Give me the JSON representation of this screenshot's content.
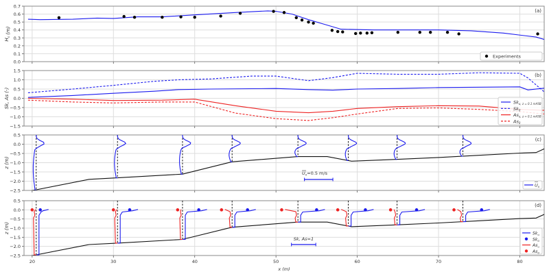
{
  "chart_data": [
    {
      "panel": "a",
      "type": "line",
      "panel_label": "(a)",
      "ylabel": "H_s (m)",
      "ylim": [
        0.0,
        0.7
      ],
      "yticks": [
        "0.0",
        "0.1",
        "0.2",
        "0.3",
        "0.4",
        "0.5",
        "0.6",
        "0.7"
      ],
      "grid": true,
      "legend": {
        "position": "lower right",
        "entries": [
          "Experiments"
        ]
      },
      "series": [
        {
          "name": "Model H_s",
          "style": "line",
          "color": "#0000ee",
          "x": [
            19.5,
            21,
            25,
            28,
            30,
            33,
            36,
            40,
            45,
            49,
            50,
            52,
            54,
            56,
            58,
            62,
            66,
            70,
            74,
            78,
            82,
            83
          ],
          "y": [
            0.535,
            0.53,
            0.535,
            0.55,
            0.545,
            0.565,
            0.565,
            0.59,
            0.62,
            0.64,
            0.635,
            0.6,
            0.53,
            0.47,
            0.41,
            0.4,
            0.4,
            0.4,
            0.39,
            0.36,
            0.31,
            0.28
          ]
        },
        {
          "name": "Experiments",
          "style": "scatter",
          "color": "#000000",
          "x": [
            23.3,
            31.3,
            32.6,
            36.0,
            38.3,
            40.0,
            43.2,
            45.6,
            49.7,
            51.0,
            52.5,
            53.2,
            54.0,
            54.6,
            56.9,
            57.6,
            58.2,
            59.8,
            60.4,
            61.2,
            61.8,
            65.0,
            67.7,
            69.0,
            71.1,
            72.5,
            82.2
          ],
          "y": [
            0.555,
            0.57,
            0.56,
            0.56,
            0.565,
            0.56,
            0.575,
            0.61,
            0.635,
            0.62,
            0.555,
            0.525,
            0.5,
            0.485,
            0.395,
            0.38,
            0.375,
            0.355,
            0.36,
            0.36,
            0.365,
            0.37,
            0.37,
            0.37,
            0.37,
            0.35,
            0.35
          ]
        }
      ]
    },
    {
      "panel": "b",
      "type": "line",
      "panel_label": "(b)",
      "ylabel": "Sk, As (-)",
      "ylim": [
        -1.5,
        1.5
      ],
      "yticks": [
        "-1.5",
        "-1.0",
        "-0.5",
        "0.0",
        "0.5",
        "1.0",
        "1.5"
      ],
      "grid": true,
      "legend": {
        "position": "lower right",
        "entries": [
          "Sk_u, z=0.1 mASB",
          "Sk_0",
          "As_u, z=0.1 mASB",
          "As_0"
        ]
      },
      "series": [
        {
          "name": "Sk_u, z=0.1 mASB",
          "color": "#0000ee",
          "dash": false,
          "x": [
            19.5,
            25,
            30,
            35,
            38,
            42,
            50,
            54,
            57,
            60,
            65,
            70,
            75,
            80,
            81,
            83
          ],
          "y": [
            0.05,
            0.15,
            0.27,
            0.38,
            0.47,
            0.5,
            0.53,
            0.47,
            0.44,
            0.5,
            0.53,
            0.58,
            0.6,
            0.62,
            0.45,
            0.55
          ]
        },
        {
          "name": "Sk_0",
          "color": "#0000ee",
          "dash": true,
          "x": [
            19.5,
            25,
            30,
            35,
            38,
            42,
            47,
            50,
            54,
            57,
            60,
            65,
            70,
            75,
            80,
            81,
            83
          ],
          "y": [
            0.3,
            0.5,
            0.7,
            0.92,
            1.0,
            1.05,
            1.2,
            1.2,
            0.95,
            1.12,
            1.35,
            1.3,
            1.3,
            1.38,
            1.35,
            1.1,
            0.35
          ]
        },
        {
          "name": "As_u, z=0.1 mASB",
          "color": "#ee0000",
          "dash": false,
          "x": [
            19.5,
            25,
            30,
            36,
            40,
            45,
            50,
            54,
            57,
            60,
            65,
            70,
            75,
            80,
            83
          ],
          "y": [
            0.0,
            -0.05,
            -0.12,
            -0.1,
            -0.05,
            -0.4,
            -0.7,
            -0.78,
            -0.7,
            -0.55,
            -0.45,
            -0.4,
            -0.42,
            -0.6,
            -0.65
          ]
        },
        {
          "name": "As_0",
          "color": "#ee0000",
          "dash": true,
          "x": [
            19.5,
            25,
            30,
            36,
            40,
            45,
            50,
            54,
            57,
            60,
            65,
            70,
            75,
            80,
            83
          ],
          "y": [
            -0.1,
            -0.2,
            -0.25,
            -0.2,
            -0.2,
            -0.8,
            -1.1,
            -1.2,
            -1.05,
            -0.85,
            -0.55,
            -0.52,
            -0.6,
            -0.72,
            -0.85
          ]
        }
      ]
    },
    {
      "panel": "c",
      "type": "line",
      "panel_label": "(c)",
      "ylabel": "z (m)",
      "ylim": [
        -2.5,
        0.5
      ],
      "yticks": [
        "-2.5",
        "-2.0",
        "-1.5",
        "-1.0",
        "-0.5",
        "0.0",
        "0.5"
      ],
      "grid": true,
      "legend": {
        "position": "lower right",
        "entries": [
          "U_x (mean)"
        ]
      },
      "scale_annotation": "U_x=0.5 m/s",
      "bed_profile": {
        "x": [
          19.5,
          20.3,
          27,
          30.5,
          38.5,
          44.6,
          52.7,
          56.3,
          59.3,
          65,
          70,
          75,
          80,
          82,
          83
        ],
        "z": [
          -2.55,
          -2.48,
          -1.9,
          -1.82,
          -1.62,
          -0.95,
          -0.67,
          -0.67,
          -0.92,
          -0.82,
          -0.72,
          -0.6,
          -0.48,
          -0.45,
          -0.25
        ]
      },
      "profile_stations_x": [
        20.5,
        30.5,
        38.5,
        44.6,
        52.7,
        58.9,
        64.9,
        73.0
      ],
      "series": [
        {
          "name": "U_x",
          "color": "#0000ee"
        }
      ]
    },
    {
      "panel": "d",
      "type": "line",
      "panel_label": "(d)",
      "xlabel": "x (m)",
      "ylabel": "z (m)",
      "ylim": [
        -2.5,
        0.5
      ],
      "xlim": [
        19,
        83
      ],
      "xticks": [
        "20",
        "30",
        "40",
        "50",
        "60",
        "70",
        "80"
      ],
      "yticks": [
        "-2.5",
        "-2.0",
        "-1.5",
        "-1.0",
        "-0.5",
        "0.0",
        "0.5"
      ],
      "grid": true,
      "legend": {
        "position": "lower right",
        "entries": [
          "Sk_u",
          "Sk_0",
          "As_u",
          "As_0"
        ]
      },
      "scale_annotation": "Sk, As=1",
      "profile_stations_x": [
        20.5,
        30.5,
        38.5,
        44.6,
        52.7,
        58.9,
        64.9,
        73.0
      ],
      "surface_points": {
        "Sk_0_x": [
          21.0,
          32.0,
          40.5,
          46.5,
          55.0,
          61.0,
          67.3,
          75.3
        ],
        "As_0_x": [
          20.0,
          30.0,
          37.9,
          43.3,
          50.7,
          57.6,
          64.1,
          71.9
        ]
      },
      "series": [
        {
          "name": "Sk_u",
          "color": "#0000ee"
        },
        {
          "name": "Sk_0",
          "color": "#0000ee",
          "marker": "circle"
        },
        {
          "name": "As_u",
          "color": "#ee0000"
        },
        {
          "name": "As_0",
          "color": "#ee0000",
          "marker": "circle"
        }
      ]
    }
  ],
  "labels": {
    "a": {
      "panel": "(a)",
      "ylabel": "H",
      "ylabel_sub": "s",
      "ylabel_unit": " (m)",
      "legend": "Experiments"
    },
    "b": {
      "panel": "(b)",
      "ylabel": "Sk, As (-)",
      "leg1": "Sk",
      "leg1_sub": "u, z = 0.1 mASB",
      "leg2": "Sk",
      "leg2_sub": "0",
      "leg3": "As",
      "leg3_sub": "u, z = 0.1 mASB",
      "leg4": "As",
      "leg4_sub": "0"
    },
    "c": {
      "panel": "(c)",
      "ylabel": "z (m)",
      "scale": "=0.5 m/s",
      "scale_sym": "U",
      "scale_sub": "x",
      "legend_sym": "U",
      "legend_sub": "x"
    },
    "d": {
      "panel": "(d)",
      "ylabel": "z (m)",
      "scale": "Sk, As=1",
      "leg1": "Sk",
      "leg1_sub": "u",
      "leg2": "Sk",
      "leg2_sub": "0",
      "leg3": "As",
      "leg3_sub": "u",
      "leg4": "As",
      "leg4_sub": "0"
    },
    "xlabel": "x (m)",
    "xticks": [
      "20",
      "30",
      "40",
      "50",
      "60",
      "70",
      "80"
    ],
    "yticks_a": [
      "0.0",
      "0.1",
      "0.2",
      "0.3",
      "0.4",
      "0.5",
      "0.6",
      "0.7"
    ],
    "yticks_b": [
      "−1.5",
      "−1.0",
      "−0.5",
      "0.0",
      "0.5",
      "1.0",
      "1.5"
    ],
    "yticks_cd": [
      "−2.5",
      "−2.0",
      "−1.5",
      "−1.0",
      "−0.5",
      "0.0",
      "0.5"
    ]
  },
  "colors": {
    "blue": "#1a1aee",
    "red": "#ee2222",
    "black": "#111111",
    "grid": "#dddddd",
    "axis": "#555555"
  }
}
